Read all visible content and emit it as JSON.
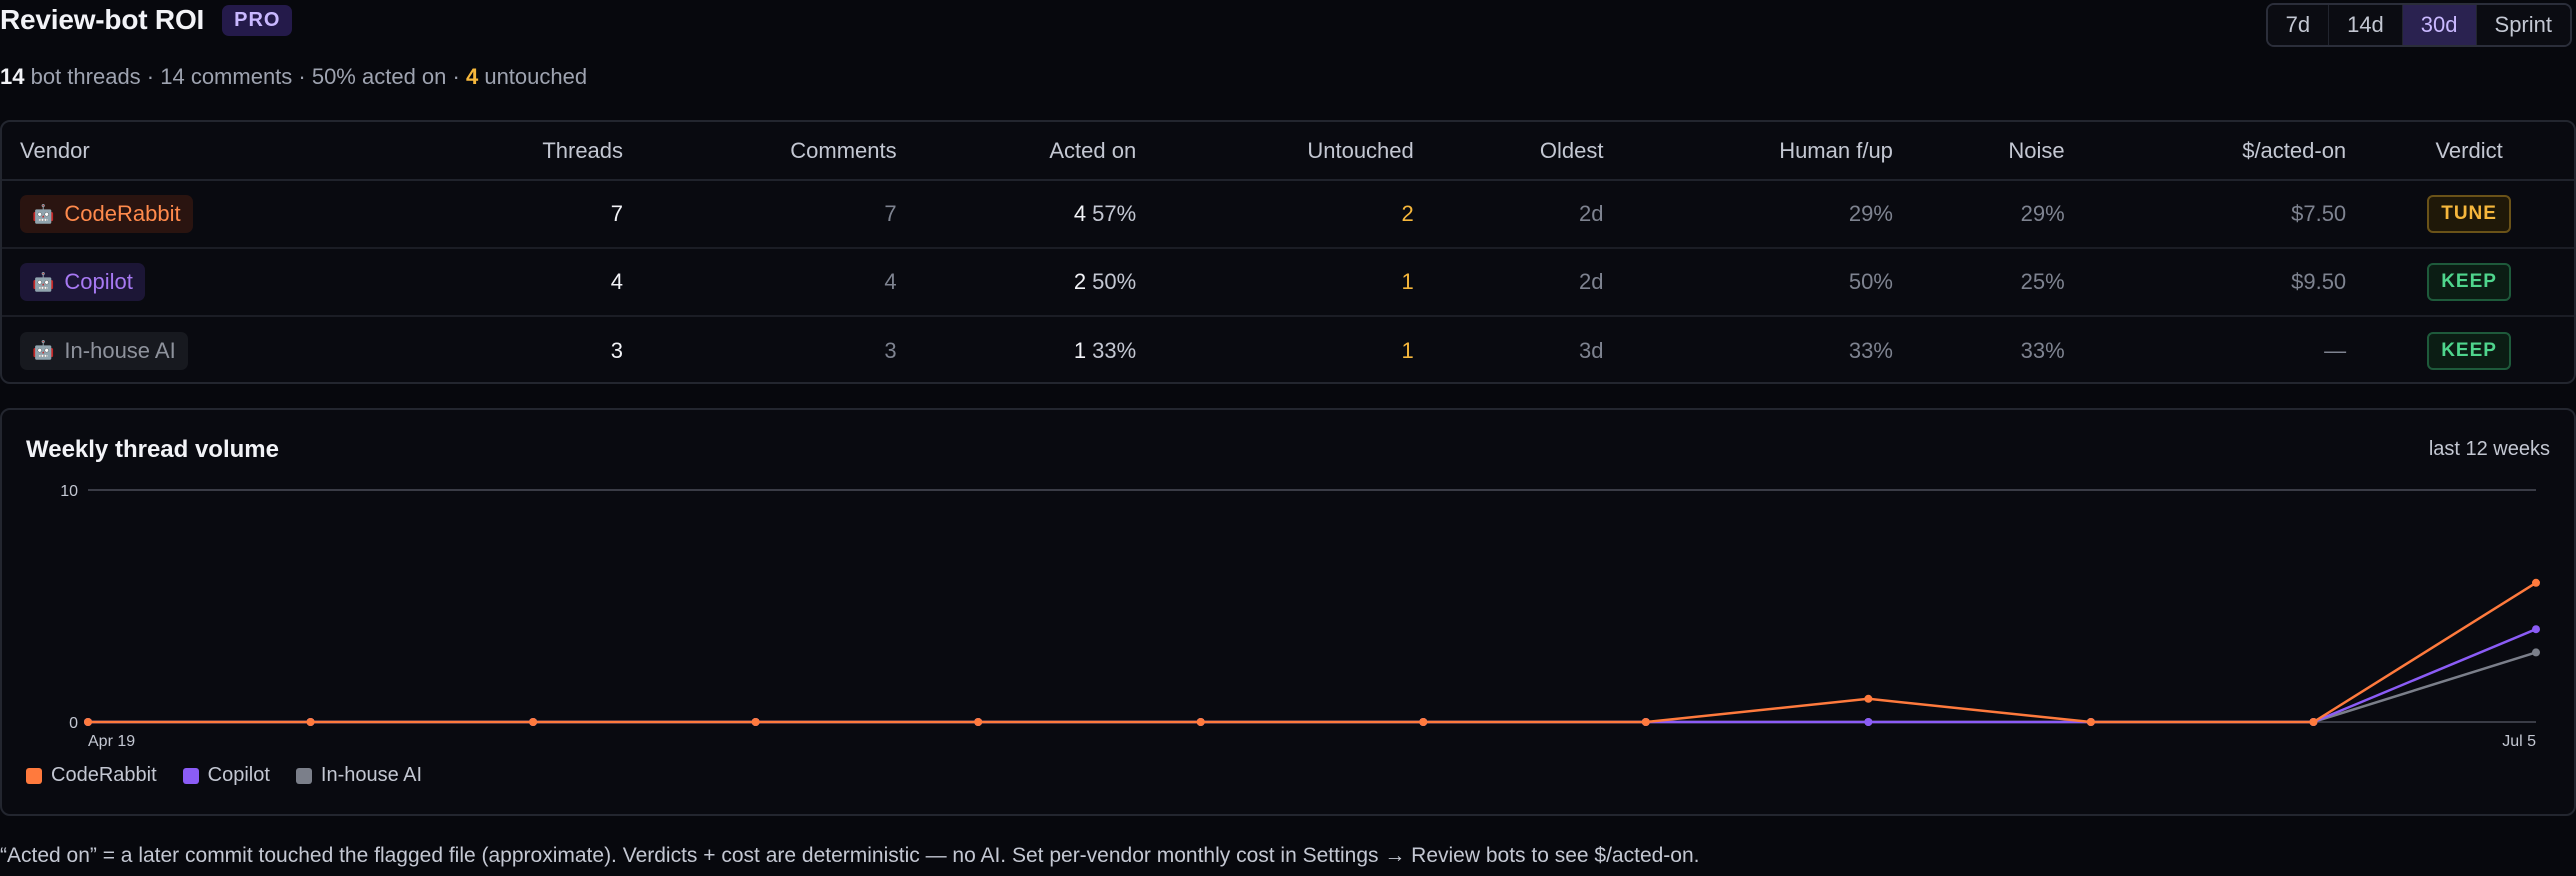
{
  "header": {
    "title": "Review-bot ROI",
    "badge": "PRO",
    "summary": {
      "threads_count": "14",
      "threads_label": "bot threads · 14 comments · 50% acted on ·",
      "untouched_count": "4",
      "untouched_label": "untouched"
    },
    "ranges": [
      {
        "label": "7d",
        "active": false
      },
      {
        "label": "14d",
        "active": false
      },
      {
        "label": "30d",
        "active": true
      },
      {
        "label": "Sprint",
        "active": false
      }
    ]
  },
  "table": {
    "columns": [
      "Vendor",
      "Threads",
      "Comments",
      "Acted on",
      "Untouched",
      "Oldest",
      "Human f/up",
      "Noise",
      "$/acted-on",
      "Verdict"
    ],
    "rows": [
      {
        "vendor": "CodeRabbit",
        "threads": "7",
        "comments": "7",
        "acted": "4",
        "acted_pct": "57%",
        "untouched": "2",
        "oldest": "2d",
        "human_fup": "29%",
        "noise": "29%",
        "cost": "$7.50",
        "verdict": "TUNE"
      },
      {
        "vendor": "Copilot",
        "threads": "4",
        "comments": "4",
        "acted": "2",
        "acted_pct": "50%",
        "untouched": "1",
        "oldest": "2d",
        "human_fup": "50%",
        "noise": "25%",
        "cost": "$9.50",
        "verdict": "KEEP"
      },
      {
        "vendor": "In-house AI",
        "threads": "3",
        "comments": "3",
        "acted": "1",
        "acted_pct": "33%",
        "untouched": "1",
        "oldest": "3d",
        "human_fup": "33%",
        "noise": "33%",
        "cost": "—",
        "verdict": "KEEP"
      }
    ]
  },
  "chart": {
    "title": "Weekly thread volume",
    "range_label": "last 12 weeks"
  },
  "chart_data": {
    "type": "line",
    "x": [
      "Apr 19",
      "Apr 26",
      "May 3",
      "May 10",
      "May 17",
      "May 24",
      "May 31",
      "Jun 7",
      "Jun 14",
      "Jun 21",
      "Jun 28",
      "Jul 5"
    ],
    "x_tick_labels": [
      "Apr 19",
      "Jul 5"
    ],
    "y_ticks": [
      0,
      10
    ],
    "ylim": [
      0,
      10
    ],
    "grid": true,
    "legend_position": "bottom-left",
    "series": [
      {
        "name": "CodeRabbit",
        "color": "#ff7a3d",
        "values": [
          0,
          0,
          0,
          0,
          0,
          0,
          0,
          0,
          1,
          0,
          0,
          6
        ]
      },
      {
        "name": "Copilot",
        "color": "#8b5cf6",
        "values": [
          0,
          0,
          0,
          0,
          0,
          0,
          0,
          0,
          0,
          0,
          0,
          4
        ]
      },
      {
        "name": "In-house AI",
        "color": "#7b7f8a",
        "values": [
          0,
          0,
          0,
          0,
          0,
          0,
          0,
          0,
          0,
          0,
          0,
          3
        ]
      }
    ]
  },
  "footnote": "“Acted on” = a later commit touched the flagged file (approximate). Verdicts + cost are deterministic — no AI. Set per-vendor monthly cost in Settings → Review bots to see $/acted-on."
}
